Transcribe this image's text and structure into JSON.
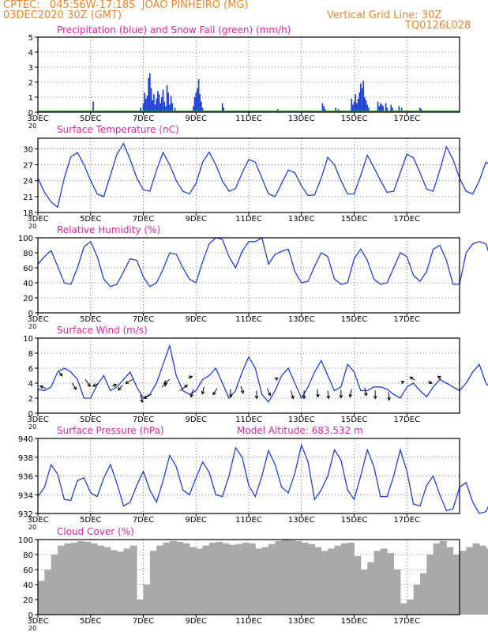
{
  "header": {
    "line1": "CPTEC:   045:56W-17:18S  JOAO PINHEIRO (MG)",
    "line2": "03DEC2020 30Z (GMT)",
    "grid_note": "Vertical Grid Line: 30Z",
    "code": "TQ0126L028"
  },
  "colors": {
    "header": "#e8862e",
    "title": "#e0259a",
    "line": "#1f3fd6",
    "precip": "#1f3fd6",
    "snow": "#1aa31a",
    "cloud": "#a9a9a9",
    "grid": "#555555"
  },
  "x_axis": {
    "days": 15,
    "tick_labels": [
      "3DEC",
      "5DEC",
      "7DEC",
      "9DEC",
      "11DEC",
      "13DEC",
      "15DEC",
      "17DEC"
    ],
    "tick_days": [
      0,
      2,
      4,
      6,
      8,
      10,
      12,
      14
    ],
    "year_stub": "20"
  },
  "chart_data": [
    {
      "id": "precip",
      "type": "bar",
      "title": "Precipitation (blue) and Snow Fall (green) (mm/h)",
      "ylim": [
        0,
        5
      ],
      "yticks": [
        0,
        1,
        2,
        3,
        4,
        5
      ],
      "series": [
        {
          "name": "Precipitation",
          "color": "#1f3fd6",
          "points": [
            [
              2.1,
              0.7
            ],
            [
              3.9,
              0.3
            ],
            [
              4.0,
              0.6
            ],
            [
              4.05,
              1.3
            ],
            [
              4.1,
              0.9
            ],
            [
              4.15,
              1.1
            ],
            [
              4.2,
              2.3
            ],
            [
              4.25,
              2.6
            ],
            [
              4.3,
              1.6
            ],
            [
              4.35,
              0.8
            ],
            [
              4.4,
              1.2
            ],
            [
              4.45,
              0.5
            ],
            [
              4.5,
              0.9
            ],
            [
              4.55,
              1.4
            ],
            [
              4.6,
              1.2
            ],
            [
              4.65,
              0.6
            ],
            [
              4.7,
              1.0
            ],
            [
              4.75,
              1.5
            ],
            [
              4.8,
              0.7
            ],
            [
              4.85,
              0.4
            ],
            [
              4.9,
              1.8
            ],
            [
              4.95,
              1.3
            ],
            [
              5.0,
              0.5
            ],
            [
              5.05,
              1.1
            ],
            [
              5.1,
              0.6
            ],
            [
              5.2,
              0.3
            ],
            [
              5.9,
              0.4
            ],
            [
              5.95,
              1.0
            ],
            [
              6.0,
              1.3
            ],
            [
              6.05,
              1.6
            ],
            [
              6.1,
              2.2
            ],
            [
              6.15,
              1.2
            ],
            [
              6.2,
              0.7
            ],
            [
              6.25,
              0.3
            ],
            [
              7.0,
              0.6
            ],
            [
              7.05,
              0.3
            ],
            [
              9.1,
              0.2
            ],
            [
              10.8,
              0.6
            ],
            [
              10.85,
              0.4
            ],
            [
              10.9,
              0.2
            ],
            [
              11.3,
              0.3
            ],
            [
              11.4,
              0.2
            ],
            [
              11.9,
              0.9
            ],
            [
              11.95,
              0.5
            ],
            [
              12.0,
              0.7
            ],
            [
              12.05,
              1.2
            ],
            [
              12.1,
              0.6
            ],
            [
              12.15,
              0.9
            ],
            [
              12.2,
              1.3
            ],
            [
              12.25,
              1.9
            ],
            [
              12.3,
              1.6
            ],
            [
              12.35,
              2.1
            ],
            [
              12.4,
              1.0
            ],
            [
              12.45,
              0.8
            ],
            [
              12.5,
              0.5
            ],
            [
              12.55,
              0.3
            ],
            [
              12.9,
              0.7
            ],
            [
              12.95,
              0.4
            ],
            [
              13.0,
              0.6
            ],
            [
              13.05,
              0.5
            ],
            [
              13.1,
              0.4
            ],
            [
              13.2,
              0.6
            ],
            [
              13.25,
              0.3
            ],
            [
              13.4,
              0.5
            ],
            [
              13.45,
              0.3
            ],
            [
              13.7,
              0.4
            ],
            [
              13.8,
              0.3
            ],
            [
              14.5,
              0.3
            ],
            [
              14.55,
              0.2
            ]
          ]
        },
        {
          "name": "Snow Fall",
          "color": "#1aa31a",
          "points": []
        }
      ]
    },
    {
      "id": "temp",
      "type": "line",
      "title": "Surface Temperature (nC)",
      "ylim": [
        18,
        32
      ],
      "yticks": [
        18,
        21,
        24,
        27,
        30
      ],
      "x_start": 0,
      "x_step": 0.25,
      "values": [
        24.5,
        21.8,
        20,
        19,
        24.5,
        28.5,
        29.3,
        27,
        24,
        21.5,
        21,
        25,
        29,
        31,
        28,
        24.5,
        22.3,
        22,
        26,
        29.3,
        27,
        24,
        22,
        21.5,
        23.5,
        27.5,
        29.4,
        27,
        24,
        22,
        22.5,
        25.5,
        28,
        27.5,
        24.5,
        21.5,
        21,
        23.5,
        26,
        25.5,
        23,
        21.2,
        21.3,
        24.5,
        28.4,
        27,
        24,
        21.5,
        21.5,
        25,
        28.8,
        26.5,
        24,
        21.8,
        22,
        25.5,
        29,
        28.3,
        25.5,
        22.4,
        22,
        26,
        30.4,
        28,
        24.5,
        22,
        21.5,
        24,
        27.5,
        26.5,
        24,
        21.3,
        21,
        23.5,
        25,
        24,
        22.3,
        21,
        21.2,
        24.5,
        27.5,
        26,
        23.5,
        21.5,
        21,
        24.8,
        28.5,
        28.8,
        26.5,
        23.5,
        22.5,
        25,
        28.5,
        29,
        27,
        25
      ],
      "xlim": [
        0,
        16
      ]
    },
    {
      "id": "rh",
      "type": "line",
      "title": "Relative Humidity (%)",
      "ylim": [
        0,
        100
      ],
      "yticks": [
        0,
        20,
        40,
        60,
        80,
        100
      ],
      "x_start": 0,
      "x_step": 0.25,
      "values": [
        65,
        75,
        83,
        62,
        40,
        38,
        60,
        88,
        95,
        75,
        45,
        35,
        38,
        55,
        72,
        70,
        48,
        35,
        40,
        58,
        80,
        78,
        60,
        45,
        40,
        68,
        92,
        100,
        98,
        75,
        60,
        82,
        95,
        95,
        100,
        65,
        78,
        82,
        85,
        55,
        40,
        42,
        62,
        80,
        75,
        45,
        38,
        40,
        72,
        85,
        70,
        45,
        38,
        40,
        60,
        80,
        75,
        50,
        42,
        55,
        85,
        90,
        70,
        38,
        38,
        80,
        92,
        95,
        92,
        65,
        75,
        92,
        100,
        95,
        88,
        90,
        92,
        92,
        55,
        40,
        42,
        65,
        82,
        70,
        38,
        42,
        65,
        90,
        72,
        40,
        38,
        55,
        72,
        82,
        92,
        70,
        38,
        40,
        48,
        52
      ],
      "xlim": [
        0,
        16
      ]
    },
    {
      "id": "wind",
      "type": "line",
      "title": "Surface Wind (m/s)",
      "ylim": [
        0,
        10
      ],
      "yticks": [
        0,
        2,
        4,
        6,
        8,
        10
      ],
      "x_start": 0,
      "x_step": 0.25,
      "values": [
        3.2,
        3.0,
        3.5,
        5.5,
        6.0,
        5.5,
        4.5,
        2.0,
        2.0,
        3.8,
        5.0,
        3.0,
        3.5,
        4.5,
        5.5,
        3.5,
        2.0,
        2.5,
        4.0,
        6.5,
        9.0,
        5.0,
        3.0,
        2.5,
        3.0,
        4.5,
        5.0,
        6.0,
        4.0,
        2.0,
        3.0,
        5.5,
        7.5,
        6.0,
        2.5,
        1.5,
        3.0,
        5.0,
        6.0,
        4.0,
        2.0,
        3.5,
        5.5,
        7.0,
        5.0,
        3.0,
        3.5,
        6.5,
        5.5,
        3.0,
        3.0,
        3.5,
        3.5,
        3.2,
        2.5,
        2.0,
        3.5,
        4.0,
        3.0,
        2.2,
        3.5,
        4.5,
        4.0,
        3.5,
        3.0,
        4.0,
        5.5,
        6.5,
        4.0,
        3.0,
        4.5,
        6.0,
        7.5,
        4.5,
        3.5,
        4.0,
        3.5,
        3.0,
        4.0,
        6.0,
        8.0,
        5.0,
        4.0,
        3.5,
        3.5,
        3.0,
        2.5,
        4.0,
        3.5,
        3.0,
        3.2,
        2.5,
        3.5,
        4.5,
        4.0,
        3.0,
        2.5
      ],
      "xlim": [
        0,
        16
      ],
      "barbs": [
        [
          0.3,
          3.3,
          -0.7,
          0.3
        ],
        [
          0.8,
          5.5,
          0.4,
          -0.5
        ],
        [
          1.3,
          4.0,
          0.5,
          -0.8
        ],
        [
          1.8,
          4.5,
          0.6,
          -0.9
        ],
        [
          2.3,
          4.0,
          -0.7,
          -0.4
        ],
        [
          2.8,
          3.6,
          0.6,
          0.2
        ],
        [
          3.2,
          3.7,
          -0.5,
          -0.6
        ],
        [
          3.6,
          4.5,
          -0.9,
          -0.5
        ],
        [
          3.9,
          2.5,
          0.2,
          -1.0
        ],
        [
          4.3,
          2.5,
          -0.9,
          -0.5
        ],
        [
          4.7,
          3.5,
          0.6,
          0.4
        ],
        [
          5.0,
          4.5,
          -0.7,
          -0.5
        ],
        [
          5.4,
          3.0,
          0.9,
          0.7
        ],
        [
          5.7,
          4.7,
          0.5,
          0.2
        ],
        [
          5.9,
          3.2,
          -0.3,
          -1.0
        ],
        [
          6.3,
          3.5,
          -0.2,
          -0.9
        ],
        [
          6.8,
          3.3,
          -0.5,
          -0.8
        ],
        [
          7.3,
          3.2,
          0.1,
          -1.0
        ],
        [
          7.7,
          3.6,
          0.3,
          -0.9
        ],
        [
          8.3,
          3.0,
          0.0,
          -1.0
        ],
        [
          8.7,
          3.3,
          0.4,
          -0.9
        ],
        [
          9.1,
          4.5,
          -0.3,
          0.2
        ],
        [
          9.6,
          3.0,
          0.3,
          -1.0
        ],
        [
          10.1,
          3.0,
          0.0,
          -1.0
        ],
        [
          10.6,
          3.2,
          0.1,
          -1.0
        ],
        [
          11.0,
          3.0,
          0.1,
          -1.0
        ],
        [
          11.5,
          3.1,
          0.0,
          -1.0
        ],
        [
          11.9,
          3.2,
          -0.2,
          -1.0
        ],
        [
          12.4,
          3.4,
          0.2,
          -1.0
        ],
        [
          12.8,
          3.0,
          0.0,
          -1.0
        ],
        [
          13.3,
          2.8,
          0.1,
          -1.0
        ],
        [
          13.8,
          4.1,
          0.3,
          0.1
        ],
        [
          14.3,
          4.4,
          -0.6,
          0.4
        ],
        [
          14.8,
          4.2,
          0.5,
          -0.2
        ],
        [
          15.3,
          4.6,
          -0.4,
          0.3
        ]
      ]
    },
    {
      "id": "pres",
      "type": "line",
      "title": "Surface Pressure (hPa)",
      "note": "Model Altitude: 683.532  m",
      "ylim": [
        932,
        940
      ],
      "yticks": [
        932,
        934,
        936,
        938,
        940
      ],
      "x_start": 0,
      "x_step": 0.25,
      "values": [
        933.8,
        934.8,
        937.2,
        936.2,
        933.5,
        933.4,
        935.5,
        935.8,
        934.2,
        933.8,
        935.8,
        937.2,
        935.2,
        932.8,
        933.2,
        935.0,
        936.5,
        934.5,
        933.2,
        935.5,
        938.2,
        937.0,
        934.5,
        934.0,
        935.8,
        937.5,
        936.4,
        934.0,
        933.8,
        936.0,
        939.0,
        938.0,
        935.0,
        933.8,
        936.0,
        938.7,
        937.2,
        934.8,
        934.2,
        936.3,
        939.3,
        937.5,
        933.5,
        934.5,
        936.0,
        938.8,
        937.7,
        934.5,
        933.5,
        936.0,
        938.8,
        937.0,
        933.8,
        933.8,
        936.0,
        938.8,
        936.5,
        933.0,
        932.8,
        935.0,
        936.0,
        934.0,
        932.3,
        932.5,
        934.8,
        935.3,
        933.2,
        931.8,
        932.2,
        933.7,
        933.6,
        932.0,
        931.8,
        932.8,
        934.5,
        934.0,
        932.0,
        931.8,
        933.0,
        934.7,
        933.5,
        932.0,
        931.7,
        933.0,
        935.4,
        933.5,
        931.5,
        931.8,
        933.5,
        933.0,
        931.5,
        931.8,
        933.3,
        932.9,
        931.5,
        931.8,
        932.5,
        931.8
      ],
      "xlim": [
        0,
        16
      ]
    },
    {
      "id": "cloud",
      "type": "area",
      "title": "Cloud Cover (%)",
      "ylim": [
        0,
        100
      ],
      "yticks": [
        0,
        20,
        40,
        60,
        80,
        100
      ],
      "x_start": 0,
      "x_step": 0.25,
      "values": [
        45,
        60,
        80,
        92,
        95,
        96,
        98,
        97,
        95,
        92,
        90,
        86,
        84,
        88,
        92,
        20,
        40,
        85,
        92,
        96,
        98,
        97,
        95,
        90,
        88,
        92,
        96,
        97,
        95,
        93,
        94,
        96,
        95,
        88,
        90,
        94,
        98,
        100,
        99,
        98,
        96,
        94,
        90,
        85,
        88,
        92,
        95,
        96,
        78,
        60,
        70,
        85,
        88,
        82,
        60,
        15,
        20,
        40,
        55,
        80,
        95,
        98,
        90,
        80,
        85,
        90,
        95,
        92,
        88,
        90,
        93,
        96,
        98,
        96,
        94,
        60,
        40,
        55,
        80,
        92,
        94,
        96,
        88,
        85,
        90,
        94,
        96,
        98,
        96,
        92,
        90,
        85,
        88,
        93,
        96,
        98,
        98
      ],
      "xlim": [
        0,
        16
      ]
    }
  ]
}
